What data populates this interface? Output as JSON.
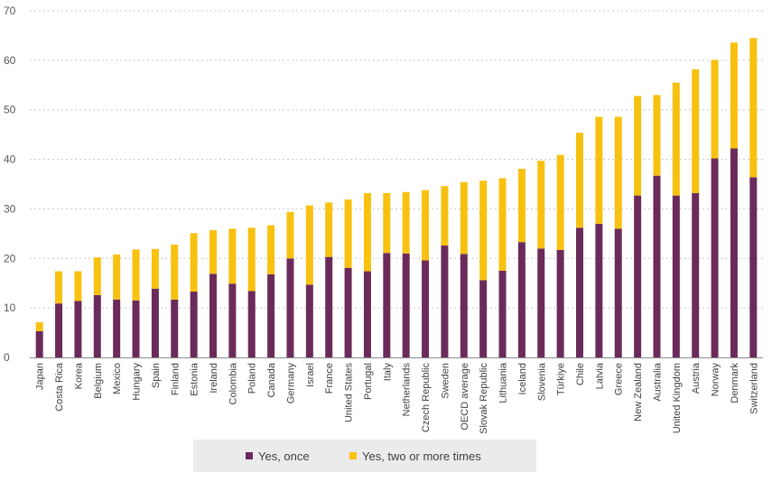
{
  "chart_data": {
    "type": "bar",
    "stacked": true,
    "categories": [
      "Japan",
      "Costa Rica",
      "Korea",
      "Belgium",
      "Mexico",
      "Hungary",
      "Spain",
      "Finland",
      "Estonia",
      "Ireland",
      "Colombia",
      "Poland",
      "Canada",
      "Germany",
      "Israel",
      "France",
      "United States",
      "Portugal",
      "Italy",
      "Netherlands",
      "Czech Republic",
      "Sweden",
      "OECD average",
      "Slovak Republic",
      "Lithuania",
      "Iceland",
      "Slovenia",
      "Türkiye",
      "Chile",
      "Latvia",
      "Greece",
      "New Zealand",
      "Australia",
      "United Kingdom",
      "Austria",
      "Norway",
      "Denmark",
      "Switzerland"
    ],
    "series": [
      {
        "name": "Yes, once",
        "color": "#6b2b5a",
        "values": [
          5.3,
          10.9,
          11.4,
          12.6,
          11.7,
          11.5,
          13.9,
          11.7,
          13.3,
          16.9,
          14.9,
          13.4,
          16.8,
          20.0,
          14.7,
          20.3,
          18.1,
          17.4,
          21.1,
          21.0,
          19.6,
          22.6,
          20.9,
          15.6,
          17.5,
          23.3,
          22.0,
          21.7,
          26.2,
          27.0,
          26.0,
          32.7,
          36.7,
          32.7,
          33.2,
          40.2,
          42.2,
          36.4
        ]
      },
      {
        "name": "Yes, two or more times",
        "color": "#f8c110",
        "values": [
          1.8,
          6.5,
          6.0,
          7.6,
          9.1,
          10.3,
          8.0,
          11.1,
          11.8,
          8.8,
          11.1,
          12.8,
          9.9,
          9.4,
          16.0,
          11.0,
          13.8,
          15.8,
          12.1,
          12.4,
          14.2,
          12.0,
          14.5,
          20.1,
          18.7,
          14.8,
          17.7,
          19.2,
          19.2,
          21.6,
          22.6,
          20.1,
          16.3,
          22.8,
          25.0,
          19.9,
          21.4,
          28.1
        ]
      }
    ],
    "ylim": [
      0,
      70
    ],
    "yticks": [
      0,
      10,
      20,
      30,
      40,
      50,
      60,
      70
    ],
    "grid": true,
    "legend": "bottom-center"
  }
}
